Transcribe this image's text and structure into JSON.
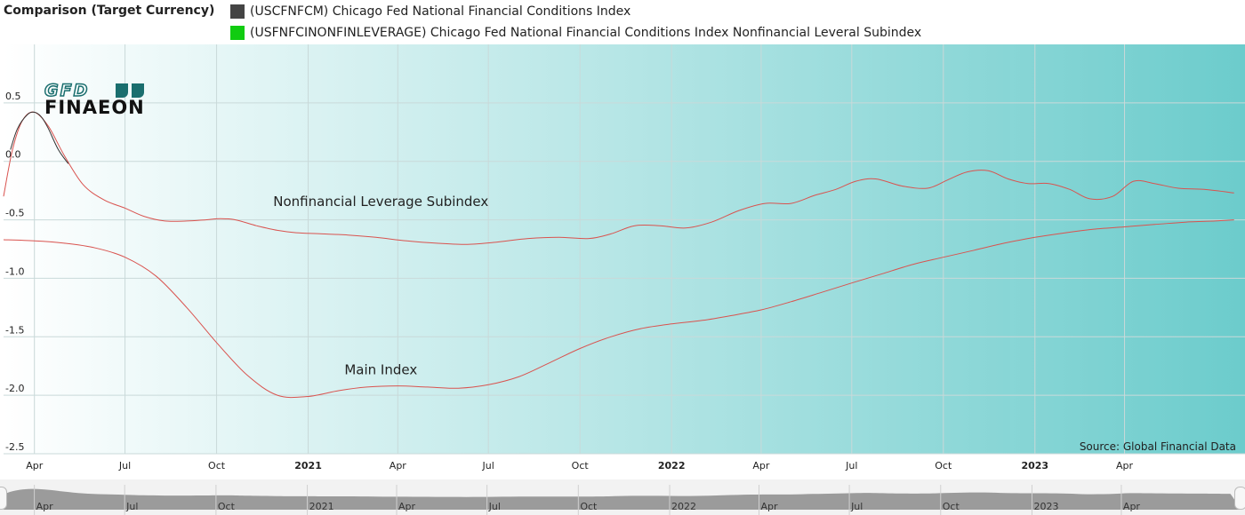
{
  "header": {
    "title": "Comparison (Target Currency)"
  },
  "legend": [
    {
      "label": "(USCFNFCM) Chicago Fed National Financial Conditions Index",
      "color": "#444444"
    },
    {
      "label": "(USFNFCINONFINLEVERAGE) Chicago Fed National Financial Conditions Index Nonfinancial Leveral Subindex",
      "color": "#11cc11"
    }
  ],
  "logo": {
    "line1": "GFD",
    "line2": "FINAEON",
    "color": "#1a6e6e"
  },
  "source": "Source: Global Financial Data",
  "colors": {
    "series_line": "#d9534f",
    "black_line": "#333333",
    "bg_left": "#ffffff",
    "bg_right": "#6ccccc"
  },
  "chart_data": {
    "type": "line",
    "title": "",
    "xlabel": "",
    "ylabel": "",
    "ylim": [
      -2.5,
      1.0
    ],
    "xlim": [
      "2020-03-01",
      "2023-07-31"
    ],
    "y_ticks": [
      {
        "value": 0.5,
        "label": "0.5"
      },
      {
        "value": 0.0,
        "label": "0.0"
      },
      {
        "value": -0.5,
        "label": "-0.5"
      },
      {
        "value": -1.0,
        "label": "-1.0"
      },
      {
        "value": -1.5,
        "label": "-1.5"
      },
      {
        "value": -2.0,
        "label": "-2.0"
      },
      {
        "value": -2.5,
        "label": "-2.5"
      }
    ],
    "x_ticks": [
      {
        "date": "2020-04-01",
        "label": "Apr",
        "bold": false
      },
      {
        "date": "2020-07-01",
        "label": "Jul",
        "bold": false
      },
      {
        "date": "2020-10-01",
        "label": "Oct",
        "bold": false
      },
      {
        "date": "2021-01-01",
        "label": "2021",
        "bold": true
      },
      {
        "date": "2021-04-01",
        "label": "Apr",
        "bold": false
      },
      {
        "date": "2021-07-01",
        "label": "Jul",
        "bold": false
      },
      {
        "date": "2021-10-01",
        "label": "Oct",
        "bold": false
      },
      {
        "date": "2022-01-01",
        "label": "2022",
        "bold": true
      },
      {
        "date": "2022-04-01",
        "label": "Apr",
        "bold": false
      },
      {
        "date": "2022-07-01",
        "label": "Jul",
        "bold": false
      },
      {
        "date": "2022-10-01",
        "label": "Oct",
        "bold": false
      },
      {
        "date": "2023-01-01",
        "label": "2023",
        "bold": true
      },
      {
        "date": "2023-04-01",
        "label": "Apr",
        "bold": false
      }
    ],
    "annotations": [
      {
        "text": "Nonfinancial Leverage Subindex",
        "date": "2021-03-15",
        "y": -0.38
      },
      {
        "text": "Main Index",
        "date": "2021-03-15",
        "y": -1.82
      }
    ],
    "series": [
      {
        "name": "Nonfinancial Leverage Subindex",
        "color": "#d9534f",
        "dates": [
          "2020-03-01",
          "2020-03-10",
          "2020-03-20",
          "2020-04-01",
          "2020-04-15",
          "2020-05-01",
          "2020-05-20",
          "2020-06-10",
          "2020-07-01",
          "2020-07-20",
          "2020-08-10",
          "2020-09-01",
          "2020-09-20",
          "2020-10-05",
          "2020-10-20",
          "2020-11-10",
          "2020-12-01",
          "2020-12-20",
          "2021-01-15",
          "2021-02-10",
          "2021-03-10",
          "2021-04-10",
          "2021-05-10",
          "2021-06-10",
          "2021-07-10",
          "2021-08-10",
          "2021-09-10",
          "2021-10-10",
          "2021-11-01",
          "2021-11-25",
          "2021-12-20",
          "2022-01-15",
          "2022-02-10",
          "2022-03-10",
          "2022-04-05",
          "2022-05-01",
          "2022-05-25",
          "2022-06-15",
          "2022-07-05",
          "2022-07-25",
          "2022-08-20",
          "2022-09-15",
          "2022-10-05",
          "2022-10-25",
          "2022-11-15",
          "2022-12-05",
          "2022-12-25",
          "2023-01-15",
          "2023-02-05",
          "2023-02-25",
          "2023-03-20",
          "2023-04-10",
          "2023-05-01",
          "2023-05-25",
          "2023-06-20",
          "2023-07-20"
        ],
        "values": [
          -0.3,
          0.1,
          0.35,
          0.42,
          0.3,
          0.05,
          -0.2,
          -0.33,
          -0.4,
          -0.47,
          -0.51,
          -0.51,
          -0.5,
          -0.49,
          -0.5,
          -0.55,
          -0.59,
          -0.61,
          -0.62,
          -0.63,
          -0.65,
          -0.68,
          -0.7,
          -0.71,
          -0.69,
          -0.66,
          -0.65,
          -0.66,
          -0.62,
          -0.55,
          -0.55,
          -0.57,
          -0.52,
          -0.42,
          -0.36,
          -0.36,
          -0.29,
          -0.24,
          -0.17,
          -0.15,
          -0.21,
          -0.23,
          -0.16,
          -0.09,
          -0.08,
          -0.15,
          -0.19,
          -0.19,
          -0.24,
          -0.32,
          -0.3,
          -0.17,
          -0.19,
          -0.23,
          -0.24,
          -0.27
        ]
      },
      {
        "name": "Main Index",
        "color": "#d9534f",
        "dates": [
          "2020-03-01",
          "2020-04-01",
          "2020-05-01",
          "2020-06-01",
          "2020-07-01",
          "2020-08-01",
          "2020-09-01",
          "2020-10-01",
          "2020-11-01",
          "2020-12-01",
          "2021-01-01",
          "2021-02-01",
          "2021-03-01",
          "2021-04-01",
          "2021-05-01",
          "2021-06-01",
          "2021-07-01",
          "2021-08-01",
          "2021-09-01",
          "2021-10-01",
          "2021-11-01",
          "2021-12-01",
          "2022-01-01",
          "2022-02-01",
          "2022-03-01",
          "2022-04-01",
          "2022-05-01",
          "2022-06-01",
          "2022-07-01",
          "2022-08-01",
          "2022-09-01",
          "2022-10-01",
          "2022-11-01",
          "2022-12-01",
          "2023-01-01",
          "2023-02-01",
          "2023-03-01",
          "2023-04-01",
          "2023-05-01",
          "2023-06-01",
          "2023-07-01",
          "2023-07-20"
        ],
        "values": [
          -0.67,
          -0.68,
          -0.7,
          -0.74,
          -0.82,
          -0.98,
          -1.25,
          -1.55,
          -1.83,
          -2.0,
          -2.01,
          -1.96,
          -1.93,
          -1.92,
          -1.93,
          -1.94,
          -1.91,
          -1.84,
          -1.72,
          -1.6,
          -1.5,
          -1.43,
          -1.39,
          -1.36,
          -1.32,
          -1.27,
          -1.2,
          -1.12,
          -1.04,
          -0.96,
          -0.88,
          -0.82,
          -0.76,
          -0.7,
          -0.65,
          -0.61,
          -0.58,
          -0.56,
          -0.54,
          -0.52,
          -0.51,
          -0.5
        ]
      },
      {
        "name": "Chicago Fed National Financial Conditions Index",
        "color": "#333333",
        "dates": [
          "2020-03-08",
          "2020-03-15",
          "2020-03-25",
          "2020-04-01",
          "2020-04-08",
          "2020-04-15",
          "2020-04-25",
          "2020-05-05"
        ],
        "values": [
          0.1,
          0.28,
          0.4,
          0.42,
          0.38,
          0.28,
          0.1,
          -0.02
        ]
      }
    ]
  }
}
